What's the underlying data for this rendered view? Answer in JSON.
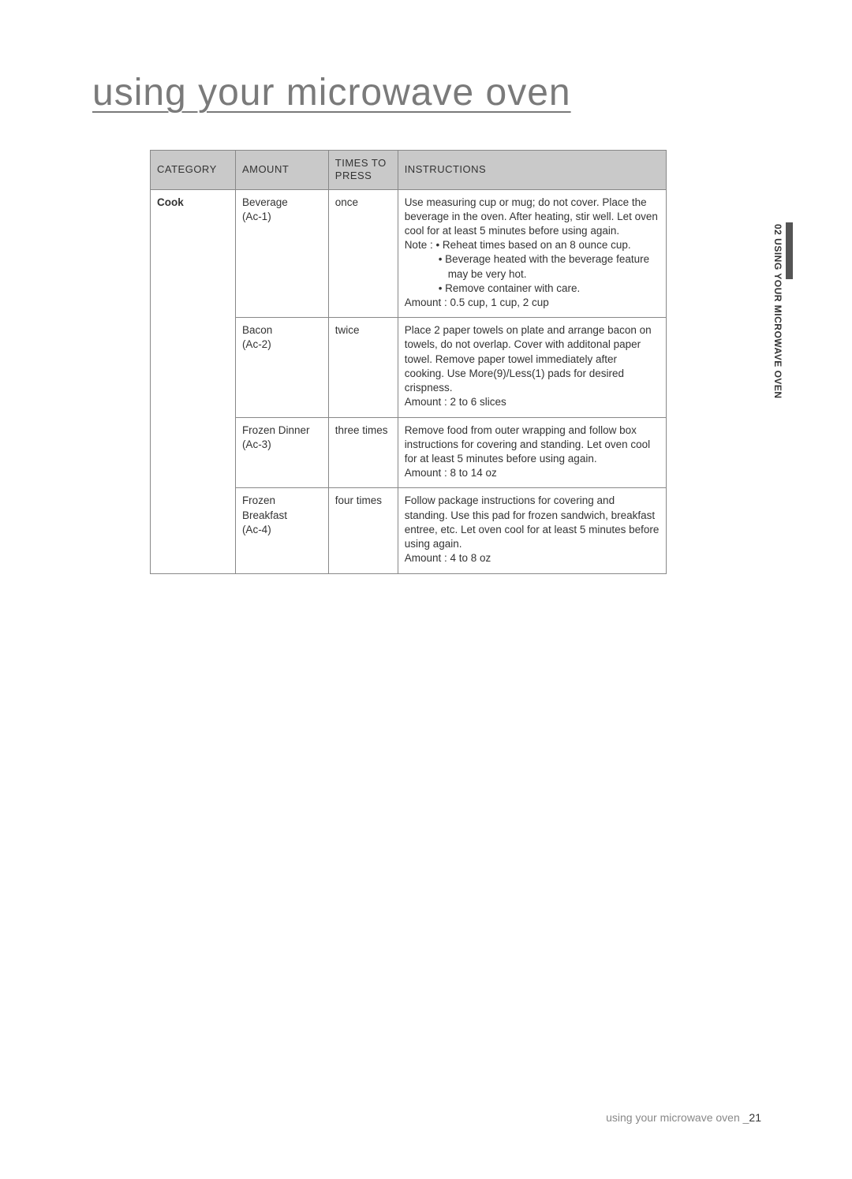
{
  "heading": "using your microwave oven",
  "sideTab": "02  USING YOUR MICROWAVE OVEN",
  "footer": {
    "label": "using your microwave oven _",
    "page": "21"
  },
  "table": {
    "headers": {
      "category": "CATEGORY",
      "amount": "AMOUNT",
      "times": "TIMES TO PRESS",
      "instructions": "INSTRUCTIONS"
    },
    "category": "Cook",
    "rows": [
      {
        "amountName": "Beverage",
        "amountCode": "(Ac-1)",
        "times": "once",
        "instrMain": "Use measuring cup or mug; do not cover. Place the beverage in the oven. After heating, stir well. Let oven cool for at least 5 minutes before using again.",
        "noteLabel": "Note : • Reheat times based on an 8 ounce cup.",
        "bullet2": "• Beverage heated with the beverage feature may be very hot.",
        "bullet3": "• Remove container with care.",
        "amountLine": "Amount : 0.5 cup, 1 cup, 2 cup"
      },
      {
        "amountName": "Bacon",
        "amountCode": "(Ac-2)",
        "times": "twice",
        "instrMain": "Place 2 paper towels on plate and arrange bacon on towels, do not overlap. Cover with additonal paper towel. Remove paper towel immediately after cooking. Use More(9)/Less(1)  pads for desired crispness.",
        "amountLine": "Amount : 2 to 6 slices"
      },
      {
        "amountName": "Frozen Dinner",
        "amountCode": "(Ac-3)",
        "times": "three times",
        "instrMain": "Remove food from outer wrapping and follow box instructions for covering and standing. Let oven cool for at least 5 minutes before using again.",
        "amountLine": "Amount : 8 to 14 oz"
      },
      {
        "amountName": "Frozen Breakfast",
        "amountCode": "(Ac-4)",
        "times": "four times",
        "instrMain": "Follow package instructions for covering and standing. Use this pad for frozen sandwich, breakfast entree, etc. Let oven cool for at least 5 minutes before using again.",
        "amountLine": "Amount : 4 to 8 oz"
      }
    ]
  },
  "colors": {
    "headerBg": "#c9c9c9",
    "border": "#888888",
    "text": "#333333",
    "headingText": "#7a7a7a",
    "footerText": "#888888",
    "sideBar": "#555555",
    "background": "#ffffff"
  },
  "layout": {
    "pageWidth": 1080,
    "pageHeight": 1495,
    "tableWidth": 655,
    "colWidths": {
      "category": 108,
      "amount": 118,
      "times": 88,
      "instructions": 341
    },
    "headingFontSize": 48,
    "bodyFontSize": 13.5
  }
}
